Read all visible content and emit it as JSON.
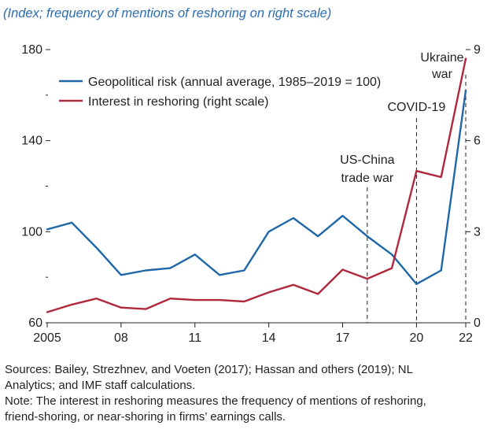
{
  "subtitle": "(Index; frequency of mentions of reshoring on right scale)",
  "chart_data": {
    "type": "line",
    "title": "",
    "x": [
      2005,
      2006,
      2007,
      2008,
      2009,
      2010,
      2011,
      2012,
      2013,
      2014,
      2015,
      2016,
      2017,
      2018,
      2019,
      2020,
      2021,
      2022
    ],
    "x_tick_values": [
      2005,
      2008,
      2011,
      2014,
      2017,
      2020,
      2022
    ],
    "x_tick_labels": [
      "2005",
      "08",
      "11",
      "14",
      "17",
      "20",
      "22"
    ],
    "xlim": [
      2005,
      2022
    ],
    "y_left": {
      "ylim": [
        60,
        180
      ],
      "ticks": [
        60,
        100,
        140,
        180
      ],
      "minor_ticks": [
        80,
        120,
        160
      ]
    },
    "y_right": {
      "ylim": [
        0,
        9
      ],
      "ticks": [
        0,
        3,
        6,
        9
      ]
    },
    "grid": false,
    "legend_position": "top-left",
    "series": [
      {
        "name": "Geopolitical risk (annual average, 1985–2019 = 100)",
        "axis": "left",
        "color": "#1f67a8",
        "values": [
          101,
          104,
          93,
          81,
          83,
          84,
          90,
          81,
          83,
          100,
          106,
          98,
          107,
          98,
          90,
          77,
          83,
          162
        ]
      },
      {
        "name": "Interest in reshoring (right scale)",
        "axis": "right",
        "color": "#b0283c",
        "values": [
          0.35,
          0.6,
          0.8,
          0.5,
          0.45,
          0.8,
          0.75,
          0.75,
          0.7,
          1.0,
          1.25,
          0.95,
          1.75,
          1.45,
          1.8,
          5.0,
          4.8,
          8.7
        ]
      }
    ],
    "annotations": [
      {
        "lines": [
          "US-China",
          "trade war"
        ],
        "x": 2018
      },
      {
        "lines": [
          "COVID-19"
        ],
        "x": 2020
      },
      {
        "lines": [
          "Ukraine",
          "war"
        ],
        "x": 2022
      }
    ]
  },
  "notes": {
    "sources": [
      "Sources: Bailey, Strezhnev, and Voeten (2017); Hassan and others (2019); NL",
      "Analytics; and IMF staff calculations."
    ],
    "note": [
      "Note: The interest in reshoring measures the frequency of mentions of reshoring,",
      "friend-shoring, or near-shoring in firms’ earnings calls."
    ]
  }
}
